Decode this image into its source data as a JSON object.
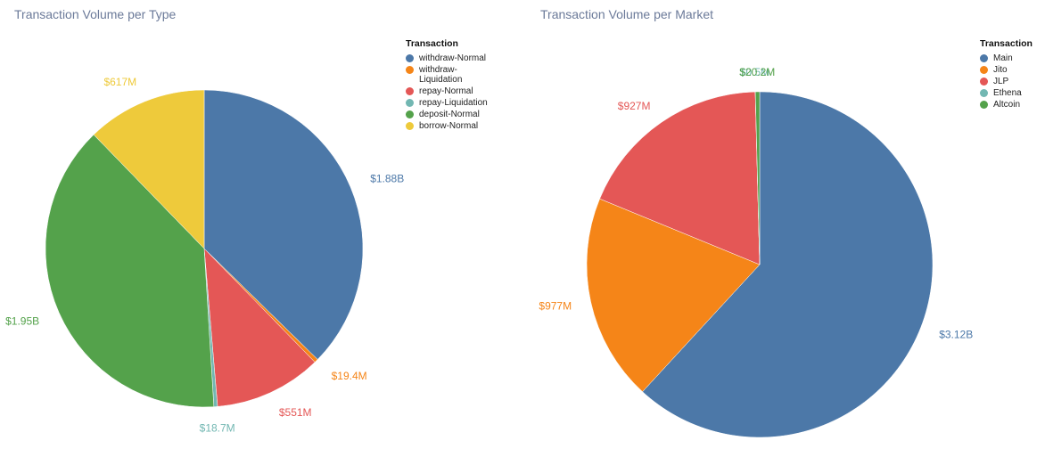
{
  "chart_data": [
    {
      "type": "pie",
      "title": "Transaction Volume per Type",
      "legend_title": "Transaction",
      "legend_position": "top-right",
      "slices": [
        {
          "name": "withdraw-Normal",
          "legend_label": "withdraw-Normal",
          "value": 1880,
          "label": "$1.88B",
          "color": "#4c78a8"
        },
        {
          "name": "withdraw-Liquidation",
          "legend_label": "withdraw-\nLiquidation",
          "value": 19.4,
          "label": "$19.4M",
          "color": "#f58518"
        },
        {
          "name": "repay-Normal",
          "legend_label": "repay-Normal",
          "value": 551,
          "label": "$551M",
          "color": "#e45756"
        },
        {
          "name": "repay-Liquidation",
          "legend_label": "repay-Liquidation",
          "value": 18.7,
          "label": "$18.7M",
          "color": "#72b7b2"
        },
        {
          "name": "deposit-Normal",
          "legend_label": "deposit-Normal",
          "value": 1950,
          "label": "$1.95B",
          "color": "#54a24b"
        },
        {
          "name": "borrow-Normal",
          "legend_label": "borrow-Normal",
          "value": 617,
          "label": "$617M",
          "color": "#eeca3b"
        }
      ]
    },
    {
      "type": "pie",
      "title": "Transaction Volume per Market",
      "legend_title": "Transaction",
      "legend_position": "top-right",
      "slices": [
        {
          "name": "Main",
          "legend_label": "Main",
          "value": 3120,
          "label": "$3.12B",
          "color": "#4c78a8"
        },
        {
          "name": "Jito",
          "legend_label": "Jito",
          "value": 977,
          "label": "$977M",
          "color": "#f58518"
        },
        {
          "name": "JLP",
          "legend_label": "JLP",
          "value": 927,
          "label": "$927M",
          "color": "#e45756"
        },
        {
          "name": "Ethena",
          "legend_label": "Ethena",
          "value": 0.5,
          "label": "$0.5M",
          "color": "#72b7b2"
        },
        {
          "name": "Altcoin",
          "legend_label": "Altcoin",
          "value": 20.2,
          "label": "$20.2M",
          "color": "#54a24b"
        }
      ]
    }
  ]
}
